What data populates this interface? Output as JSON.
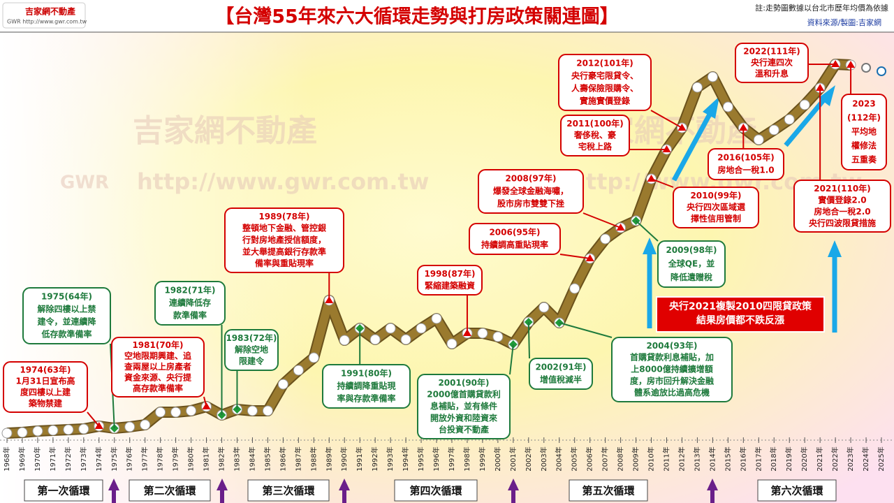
{
  "header": {
    "logo": "吉家網不動產",
    "logo_sub": "GWR  http://www.gwr.com.tw",
    "title": "【台灣55年來六大循環走勢與打房政策關連圖】",
    "note": "註:走勢圖數據以台北市歷年均價為依據",
    "source": "資料來源/製圖:吉家網"
  },
  "watermark": {
    "name": "吉家網不動產",
    "brand": "GWR",
    "url": "http://www.gwr.com.tw"
  },
  "chart_data": {
    "type": "line",
    "color": "#9a7a2e",
    "categories": [
      "1968年",
      "1969年",
      "1970年",
      "1971年",
      "1972年",
      "1973年",
      "1974年",
      "1975年",
      "1976年",
      "1977年",
      "1978年",
      "1979年",
      "1980年",
      "1981年",
      "1982年",
      "1983年",
      "1984年",
      "1985年",
      "1986年",
      "1987年",
      "1988年",
      "1989年",
      "1990年",
      "1991年",
      "1992年",
      "1993年",
      "1994年",
      "1995年",
      "1996年",
      "1997年",
      "1998年",
      "1999年",
      "2000年",
      "2001年",
      "2002年",
      "2003年",
      "2004年",
      "2005年",
      "2006年",
      "2007年",
      "2008年",
      "2009年",
      "2010年",
      "2011年",
      "2012年",
      "2013年",
      "2014年",
      "2015年",
      "2016年",
      "2017年",
      "2018年",
      "2019年",
      "2020年",
      "2021年",
      "2022年",
      "2023年",
      "2024年",
      "2025年"
    ],
    "values": [
      10,
      11,
      13,
      14,
      15,
      16,
      20,
      17,
      19,
      22,
      40,
      40,
      42,
      48,
      36,
      44,
      42,
      42,
      80,
      100,
      118,
      200,
      143,
      160,
      144,
      160,
      144,
      160,
      174,
      138,
      153,
      153,
      148,
      137,
      169,
      190,
      168,
      217,
      260,
      288,
      304,
      314,
      374,
      416,
      447,
      505,
      520,
      477,
      447,
      430,
      444,
      459,
      480,
      504,
      538,
      537,
      null,
      null
    ],
    "outlook_values": [
      null,
      null,
      null,
      null,
      null,
      null,
      null,
      null,
      null,
      null,
      null,
      null,
      null,
      null,
      null,
      null,
      null,
      null,
      null,
      null,
      null,
      null,
      null,
      null,
      null,
      null,
      null,
      null,
      null,
      null,
      null,
      null,
      null,
      null,
      null,
      null,
      null,
      null,
      null,
      null,
      null,
      null,
      null,
      null,
      null,
      null,
      null,
      null,
      null,
      null,
      null,
      null,
      null,
      null,
      null,
      null,
      533,
      528
    ],
    "markers": [
      "circle",
      "circle",
      "circle",
      "circle",
      "circle",
      "circle",
      "triangle",
      "diamond",
      "circle",
      "circle",
      "circle",
      "circle",
      "circle",
      "triangle",
      "diamond",
      "diamond",
      "circle",
      "circle",
      "circle",
      "circle",
      "circle",
      "triangle",
      "circle",
      "diamond",
      "circle",
      "circle",
      "circle",
      "circle",
      "circle",
      "circle",
      "triangle",
      "circle",
      "circle",
      "diamond",
      "diamond",
      "circle",
      "diamond",
      "circle",
      "triangle",
      "circle",
      "triangle",
      "diamond",
      "triangle",
      "triangle",
      "triangle",
      "circle",
      "circle",
      "circle",
      "triangle",
      "circle",
      "circle",
      "circle",
      "circle",
      "triangle",
      "triangle",
      "triangle",
      "open-gray",
      "open-blue"
    ],
    "ylim": [
      0,
      560
    ],
    "annotations": [
      {
        "color": "#d40000",
        "lines": [
          "1974(63年)",
          "1月31日宣布高",
          "度四樓以上建",
          "築物禁建"
        ]
      },
      {
        "color": "#1e7a3c",
        "lines": [
          "1975(64年)",
          "解除四樓以上禁",
          "建令，並連續降",
          "低存款準備率"
        ]
      },
      {
        "color": "#d40000",
        "lines": [
          "1981(70年)",
          "空地限期興建、追",
          "查兩屋以上房產者",
          "資金來源、央行提",
          "高存款準備率"
        ]
      },
      {
        "color": "#1e7a3c",
        "lines": [
          "1982(71年)",
          "連續降低存",
          "款準備率"
        ]
      },
      {
        "color": "#1e7a3c",
        "lines": [
          "1983(72年)",
          "解除空地",
          "限建令"
        ]
      },
      {
        "color": "#d40000",
        "lines": [
          "1989(78年)",
          "整頓地下金融、管控銀",
          "行對房地產授信額度，",
          "並大舉提高銀行存款準",
          "備率與重貼現率"
        ]
      },
      {
        "color": "#1e7a3c",
        "lines": [
          "1991(80年)",
          "持續調降重貼現",
          "率與存款準備率"
        ]
      },
      {
        "color": "#d40000",
        "lines": [
          "1998(87年)",
          "緊縮建築融資"
        ]
      },
      {
        "color": "#1e7a3c",
        "lines": [
          "2001(90年)",
          "2000億首購貸款利",
          "息補貼，並有條件",
          "開放外資和陸資來",
          "台投資不動產"
        ]
      },
      {
        "color": "#1e7a3c",
        "lines": [
          "2002(91年)",
          "增值稅減半"
        ]
      },
      {
        "color": "#1e7a3c",
        "lines": [
          "2004(93年)",
          "首購貸款利息補貼，加",
          "上8000億持續擴增額",
          "度，房市回升解決金融",
          "體系逾放比過高危機"
        ]
      },
      {
        "color": "#d40000",
        "lines": [
          "2006(95年)",
          "持續調高重貼現率"
        ]
      },
      {
        "color": "#d40000",
        "lines": [
          "2008(97年)",
          "爆發全球金融海嘯，",
          "股市房市雙雙下挫"
        ]
      },
      {
        "color": "#1e7a3c",
        "lines": [
          "2009(98年)",
          "全球QE，並",
          "降低遺贈稅"
        ]
      },
      {
        "color": "#d40000",
        "lines": [
          "2010(99年)",
          "央行四次區域選",
          "擇性信用管制"
        ]
      },
      {
        "color": "#d40000",
        "lines": [
          "2011(100年)",
          "奢侈稅、豪",
          "宅稅上路"
        ]
      },
      {
        "color": "#d40000",
        "lines": [
          "2012(101年)",
          "央行豪宅限貸令、",
          "人壽保險限購令、",
          "實施實價登錄"
        ]
      },
      {
        "color": "#d40000",
        "lines": [
          "2016(105年)",
          "房地合一稅1.0"
        ]
      },
      {
        "color": "#d40000",
        "lines": [
          "2021(110年)",
          "實價登錄2.0",
          "房地合一稅2.0",
          "央行四波限貸措施"
        ]
      },
      {
        "color": "#d40000",
        "lines": [
          "2022(111年)",
          "央行連四次",
          "溫和升息"
        ]
      },
      {
        "color": "#d40000",
        "lines": [
          "2023",
          "(112年)",
          "平均地",
          "權修法",
          "五重奏"
        ]
      }
    ],
    "highlight": {
      "lines": [
        "央行2021複製2010四限貸政策",
        "結果房價都不跌反漲"
      ]
    },
    "cycles": [
      "第一次循環",
      "第二次循環",
      "第三次循環",
      "第四次循環",
      "第五次循環",
      "第六次循環"
    ]
  }
}
